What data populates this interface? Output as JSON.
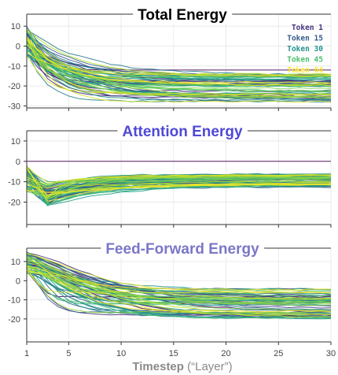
{
  "x_axis": {
    "label_bold": "Timestep",
    "label_rest": " (“Layer”)",
    "ticks": [
      1,
      5,
      10,
      15,
      20,
      25,
      30
    ]
  },
  "legend": [
    {
      "label": "Token 1",
      "color": "#46327e"
    },
    {
      "label": "Token 15",
      "color": "#365c8d"
    },
    {
      "label": "Token 30",
      "color": "#21918c"
    },
    {
      "label": "Token 45",
      "color": "#4ac16d"
    },
    {
      "label": "Token 64",
      "color": "#fde725"
    }
  ],
  "chart_data": [
    {
      "type": "line",
      "title": "Total Energy",
      "title_color": "#000000",
      "x": [
        1,
        30
      ],
      "ylim": [
        -31,
        16
      ],
      "yticks": [
        10,
        0,
        -10,
        -20,
        -30
      ],
      "grid": true,
      "legend_position": "top-right",
      "series_summary": {
        "count": 64,
        "start_range": [
          -5,
          10
        ],
        "end_range": [
          -28,
          -12
        ],
        "flat_token": {
          "name": "Token 1",
          "end_value": -12
        }
      }
    },
    {
      "type": "line",
      "title": "Attention Energy",
      "title_color": "#4f49d6",
      "x": [
        1,
        30
      ],
      "ylim": [
        -31,
        15
      ],
      "yticks": [
        10,
        0,
        -10,
        -20
      ],
      "grid": true,
      "series_summary": {
        "count": 64,
        "start_range": [
          -15,
          -2
        ],
        "end_range": [
          -13,
          -6
        ],
        "flat_token": {
          "name": "Token 1",
          "end_value": 0
        }
      }
    },
    {
      "type": "line",
      "title": "Feed-Forward Energy",
      "title_color": "#7b77c8",
      "x": [
        1,
        30
      ],
      "ylim": [
        -32,
        17
      ],
      "yticks": [
        10,
        0,
        -10,
        -20
      ],
      "grid": true,
      "series_summary": {
        "count": 64,
        "start_range": [
          4,
          15
        ],
        "end_range": [
          -20,
          -4
        ]
      }
    }
  ]
}
